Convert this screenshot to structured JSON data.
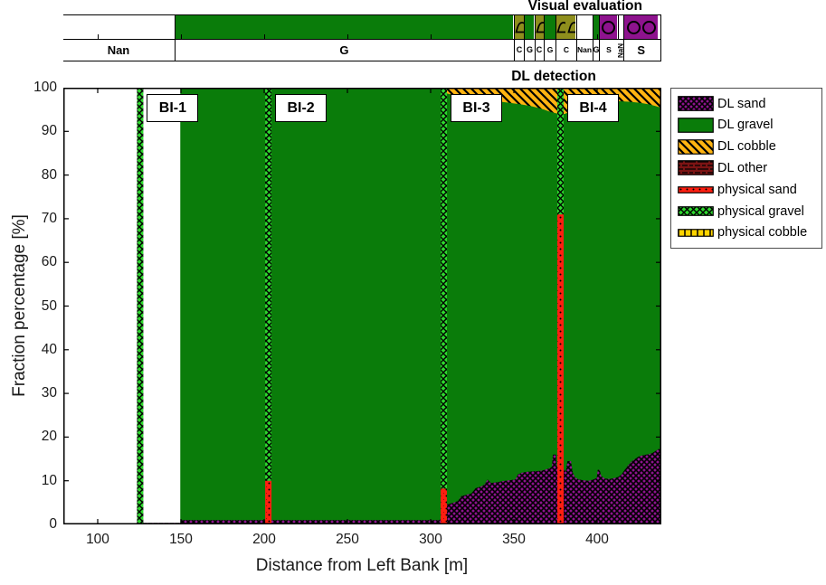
{
  "figure": {
    "strip_title": "Visual evaluation",
    "plot_title": "DL detection",
    "x_label": "Distance from Left Bank [m]",
    "y_label": "Fraction percentage [%]"
  },
  "colors": {
    "white": "#ffffff",
    "gravel_green": "#0a7c0a",
    "cobble_olive": "#8f8f1d",
    "sand_purple": "#8e138e",
    "dl_cobble_orange": "#ffb411",
    "dl_other_darkred": "#7c1414",
    "phys_sand_red": "#ff1e10",
    "phys_gravel_green": "#2ed82e",
    "phys_cobble_yellow": "#ffd400",
    "axis_black": "#000000"
  },
  "strip": {
    "segments": [
      {
        "label": "Nan",
        "start": 79.3,
        "end": 146.2,
        "fill": "white"
      },
      {
        "label": "G",
        "start": 146.2,
        "end": 350.0,
        "fill": "gravel_green"
      },
      {
        "label": "C",
        "start": 350.0,
        "end": 356.5,
        "fill": "cobble_olive",
        "glyph": "arch",
        "count": 1
      },
      {
        "label": "G",
        "start": 356.5,
        "end": 362.5,
        "fill": "gravel_green"
      },
      {
        "label": "C",
        "start": 362.5,
        "end": 368.0,
        "fill": "cobble_olive",
        "glyph": "arch",
        "count": 1
      },
      {
        "label": "G",
        "start": 368.0,
        "end": 375.5,
        "fill": "gravel_green"
      },
      {
        "label": "C",
        "start": 375.5,
        "end": 387.5,
        "fill": "cobble_olive",
        "glyph": "arch",
        "count": 2
      },
      {
        "label": "Nan",
        "start": 387.5,
        "end": 397.3,
        "fill": "white"
      },
      {
        "label": "G",
        "start": 397.3,
        "end": 401.6,
        "fill": "gravel_green"
      },
      {
        "label": "S",
        "start": 401.6,
        "end": 412.5,
        "fill": "sand_purple",
        "glyph": "circle",
        "count": 1
      },
      {
        "label": "NaN",
        "start": 412.5,
        "end": 416.3,
        "fill": "white",
        "rotated": true
      },
      {
        "label": "S",
        "start": 416.3,
        "end": 436.6,
        "fill": "sand_purple",
        "glyph": "circle",
        "count": 2
      }
    ]
  },
  "chart_data": {
    "type": "area",
    "title": "DL detection",
    "xlabel": "Distance from Left Bank [m]",
    "ylabel": "Fraction percentage [%]",
    "xlim": [
      79.3,
      438.6
    ],
    "ylim": [
      0,
      100
    ],
    "x_ticks": [
      100,
      150,
      200,
      250,
      300,
      350,
      400
    ],
    "y_ticks": [
      0,
      10,
      20,
      30,
      40,
      50,
      60,
      70,
      80,
      90,
      100
    ],
    "grid": false,
    "legend_position": "upper-right-outside",
    "series": [
      {
        "name": "DL sand",
        "role": "bottom-area",
        "points": [
          [
            123.5,
            0.35
          ],
          [
            149.6,
            0.35
          ],
          [
            150.3,
            1.0
          ],
          [
            240,
            1.0
          ],
          [
            305.6,
            1.0
          ],
          [
            307,
            2.2
          ],
          [
            308.2,
            4.4
          ],
          [
            311,
            4.7
          ],
          [
            314,
            5.0
          ],
          [
            316.5,
            5.4
          ],
          [
            318.5,
            6.5
          ],
          [
            321.5,
            6.8
          ],
          [
            324.5,
            7.1
          ],
          [
            327,
            8.3
          ],
          [
            330.5,
            8.7
          ],
          [
            332.5,
            9.2
          ],
          [
            334.2,
            10.3
          ],
          [
            336.2,
            9.5
          ],
          [
            339,
            9.6
          ],
          [
            343,
            9.9
          ],
          [
            347,
            10.1
          ],
          [
            351,
            10.3
          ],
          [
            352.5,
            11.5
          ],
          [
            355.5,
            11.9
          ],
          [
            359,
            12.1
          ],
          [
            363,
            12.2
          ],
          [
            366.5,
            12.3
          ],
          [
            369.5,
            12.6
          ],
          [
            371.5,
            12.9
          ],
          [
            372.8,
            13.2
          ],
          [
            373.4,
            16.0
          ],
          [
            375.3,
            16.0
          ],
          [
            375.8,
            13.2
          ],
          [
            379.8,
            12.7
          ],
          [
            381.2,
            12.1
          ],
          [
            382.2,
            14.5
          ],
          [
            384.3,
            14.5
          ],
          [
            385.3,
            11.9
          ],
          [
            386.8,
            10.7
          ],
          [
            389,
            10.3
          ],
          [
            392,
            10.1
          ],
          [
            395,
            10.0
          ],
          [
            397.8,
            10.3
          ],
          [
            399.8,
            10.6
          ],
          [
            400.4,
            12.5
          ],
          [
            401.6,
            12.5
          ],
          [
            402.4,
            11.1
          ],
          [
            404.5,
            10.5
          ],
          [
            407.5,
            10.4
          ],
          [
            410.5,
            10.6
          ],
          [
            412.8,
            10.9
          ],
          [
            414.8,
            11.5
          ],
          [
            416.8,
            12.6
          ],
          [
            418.8,
            13.6
          ],
          [
            420.8,
            14.4
          ],
          [
            422.8,
            15.0
          ],
          [
            424.8,
            15.5
          ],
          [
            427,
            15.8
          ],
          [
            429.5,
            16.0
          ],
          [
            431.5,
            16.1
          ],
          [
            433.5,
            16.4
          ],
          [
            435.5,
            16.9
          ],
          [
            437.2,
            17.3
          ],
          [
            438.6,
            17.2
          ]
        ]
      },
      {
        "name": "DL gravel",
        "role": "middle-fill",
        "extent": [
          149.6,
          438.6
        ]
      },
      {
        "name": "DL cobble",
        "role": "top-area",
        "bottom_edge": [
          [
            308.4,
            99.8
          ],
          [
            309.6,
            98.7
          ],
          [
            313,
            98.4
          ],
          [
            318,
            98.1
          ],
          [
            324,
            97.8
          ],
          [
            330,
            97.5
          ],
          [
            336,
            97.1
          ],
          [
            342,
            96.8
          ],
          [
            348,
            96.5
          ],
          [
            354,
            96.2
          ],
          [
            360,
            95.8
          ],
          [
            364.5,
            95.4
          ],
          [
            368,
            95.0
          ],
          [
            371,
            94.6
          ],
          [
            373.5,
            94.3
          ],
          [
            376,
            94.1
          ],
          [
            380.5,
            94.0
          ],
          [
            382.5,
            94.3
          ],
          [
            384.5,
            94.8
          ],
          [
            387,
            95.6
          ],
          [
            390,
            96.2
          ],
          [
            393,
            96.6
          ],
          [
            397,
            96.9
          ],
          [
            402,
            97.0
          ],
          [
            408,
            97.0
          ],
          [
            414,
            96.9
          ],
          [
            419,
            96.8
          ],
          [
            424,
            96.6
          ],
          [
            428,
            96.4
          ],
          [
            432,
            96.1
          ],
          [
            435,
            95.8
          ],
          [
            438.6,
            95.4
          ]
        ]
      }
    ],
    "bars": [
      {
        "label": "BI-1",
        "center": 125.5,
        "width": 3.8,
        "phys_sand_top": 0,
        "phys_gravel_top": 100
      },
      {
        "label": "BI-2",
        "center": 202.5,
        "width": 3.8,
        "phys_sand_top": 10,
        "phys_gravel_top": 100
      },
      {
        "label": "BI-3",
        "center": 307.9,
        "width": 3.8,
        "phys_sand_top": 8.2,
        "phys_gravel_top": 100
      },
      {
        "label": "BI-4",
        "center": 378.0,
        "width": 3.8,
        "phys_sand_top": 71,
        "phys_gravel_top": 100
      }
    ]
  },
  "legend": {
    "items": [
      {
        "label": "DL sand",
        "swatch": "dl-sand",
        "h": 17
      },
      {
        "label": "DL gravel",
        "swatch": "dl-gravel",
        "h": 17
      },
      {
        "label": "DL cobble",
        "swatch": "dl-cobble",
        "h": 17
      },
      {
        "label": "DL other",
        "swatch": "dl-other",
        "h": 17
      },
      {
        "label": "physical sand",
        "swatch": "phys-sand",
        "h": 8
      },
      {
        "label": "physical gravel",
        "swatch": "phys-gravel",
        "h": 11
      },
      {
        "label": "physical cobble",
        "swatch": "phys-cobble",
        "h": 9
      }
    ]
  }
}
